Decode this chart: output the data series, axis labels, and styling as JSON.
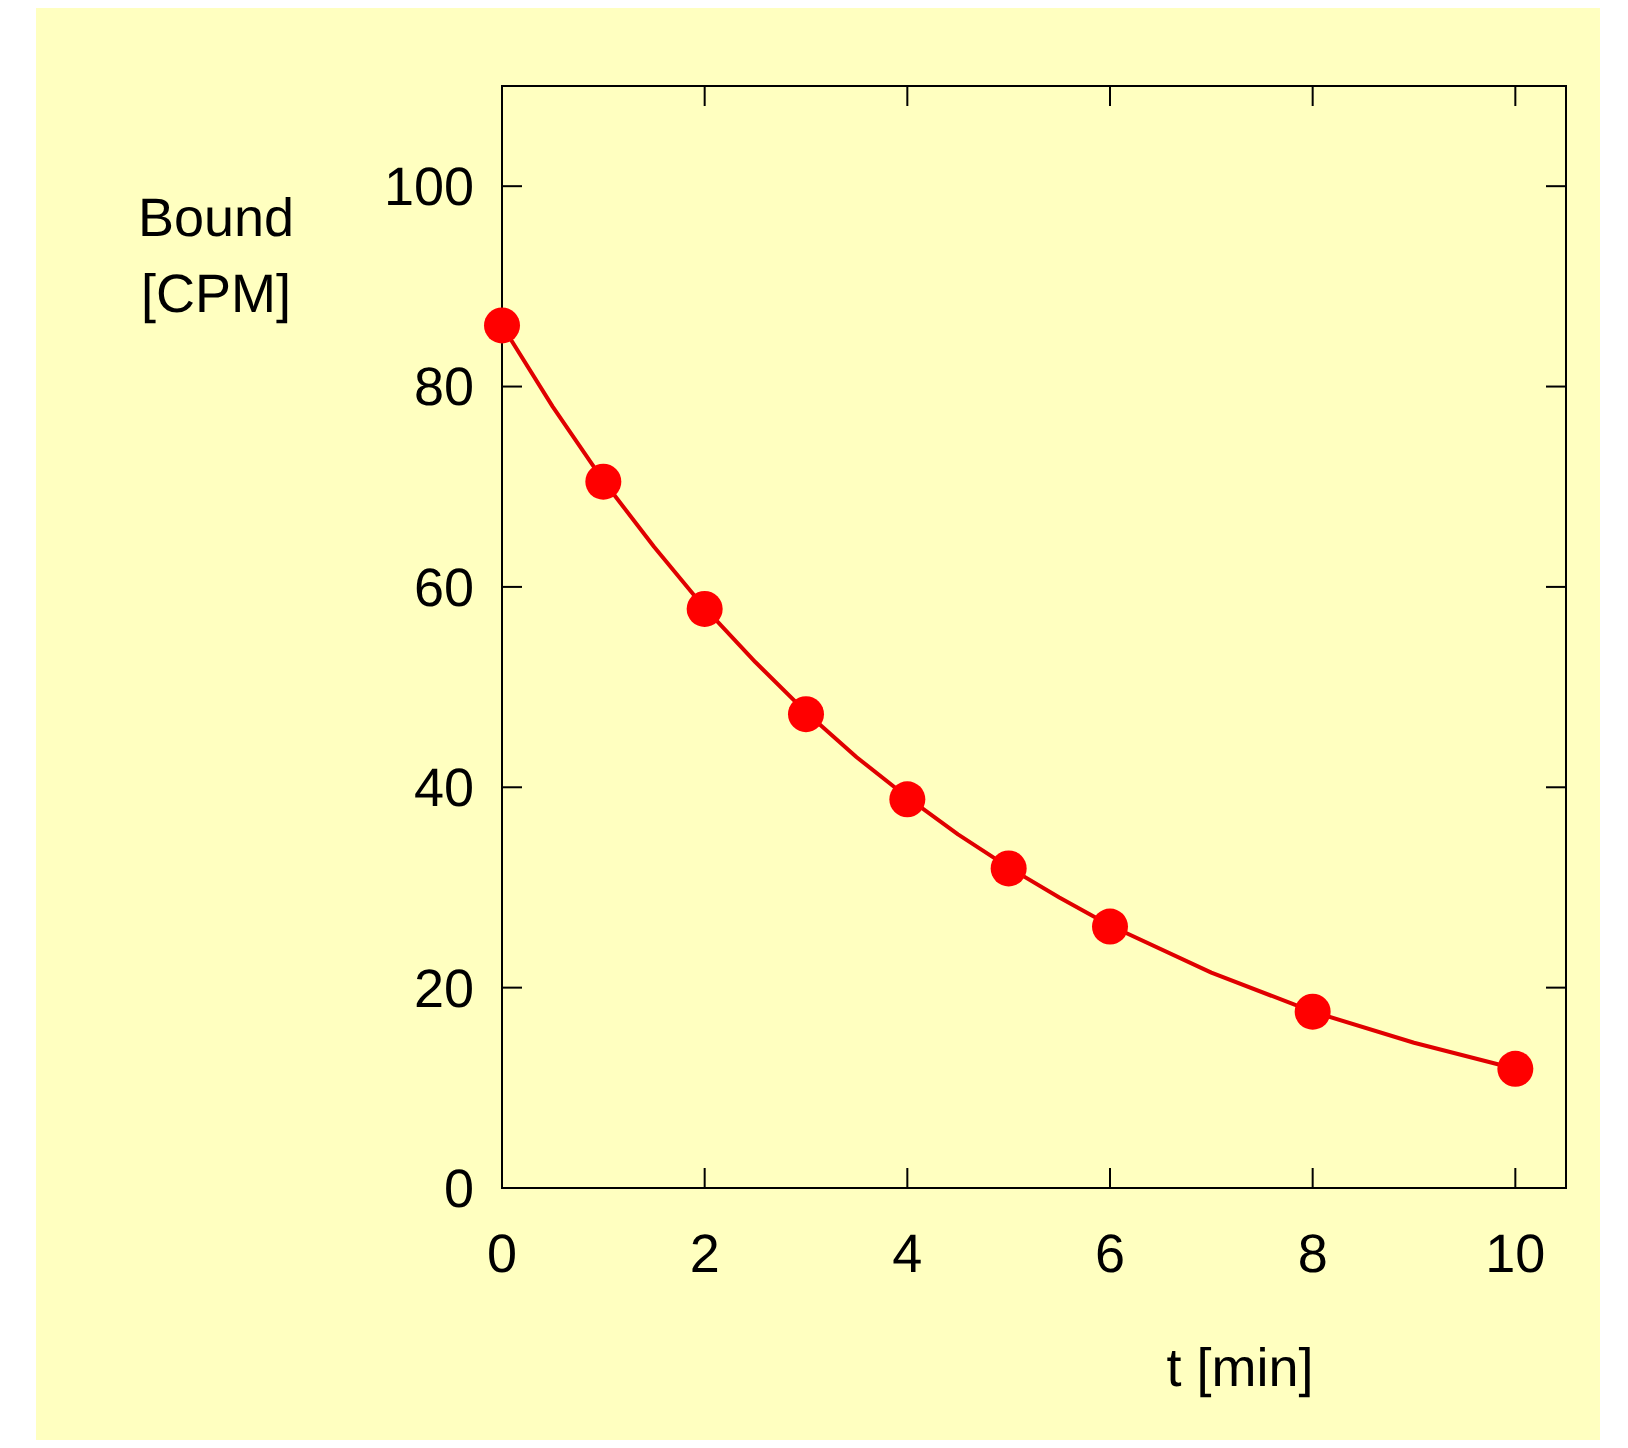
{
  "chart_data": {
    "type": "scatter",
    "xlabel": "t [min]",
    "ylabel": "Bound [CPM]",
    "xlim": [
      0,
      10.5
    ],
    "ylim": [
      0,
      110
    ],
    "xticks": [
      0,
      2,
      4,
      6,
      8,
      10
    ],
    "yticks": [
      0,
      20,
      40,
      60,
      80,
      100
    ],
    "grid": false,
    "series": [
      {
        "type": "line",
        "color": "#e00000",
        "marker": "none",
        "line_style": "solid",
        "x": [
          0,
          0.5,
          1,
          1.5,
          2,
          2.5,
          3,
          3.5,
          4,
          4.5,
          5,
          5.5,
          6,
          7,
          8,
          9,
          10
        ],
        "values": [
          86.1,
          78,
          70.6,
          64,
          57.9,
          52.5,
          47.5,
          43,
          39,
          35.3,
          32,
          29,
          26.2,
          21.5,
          17.6,
          14.5,
          11.9
        ]
      },
      {
        "color": "#ff0000",
        "marker": "circle",
        "x": [
          0,
          1,
          2,
          3,
          4,
          5,
          6,
          8,
          10
        ],
        "values": [
          86.1,
          70.5,
          57.8,
          47.3,
          38.8,
          31.9,
          26.1,
          17.6,
          11.9
        ]
      }
    ]
  }
}
